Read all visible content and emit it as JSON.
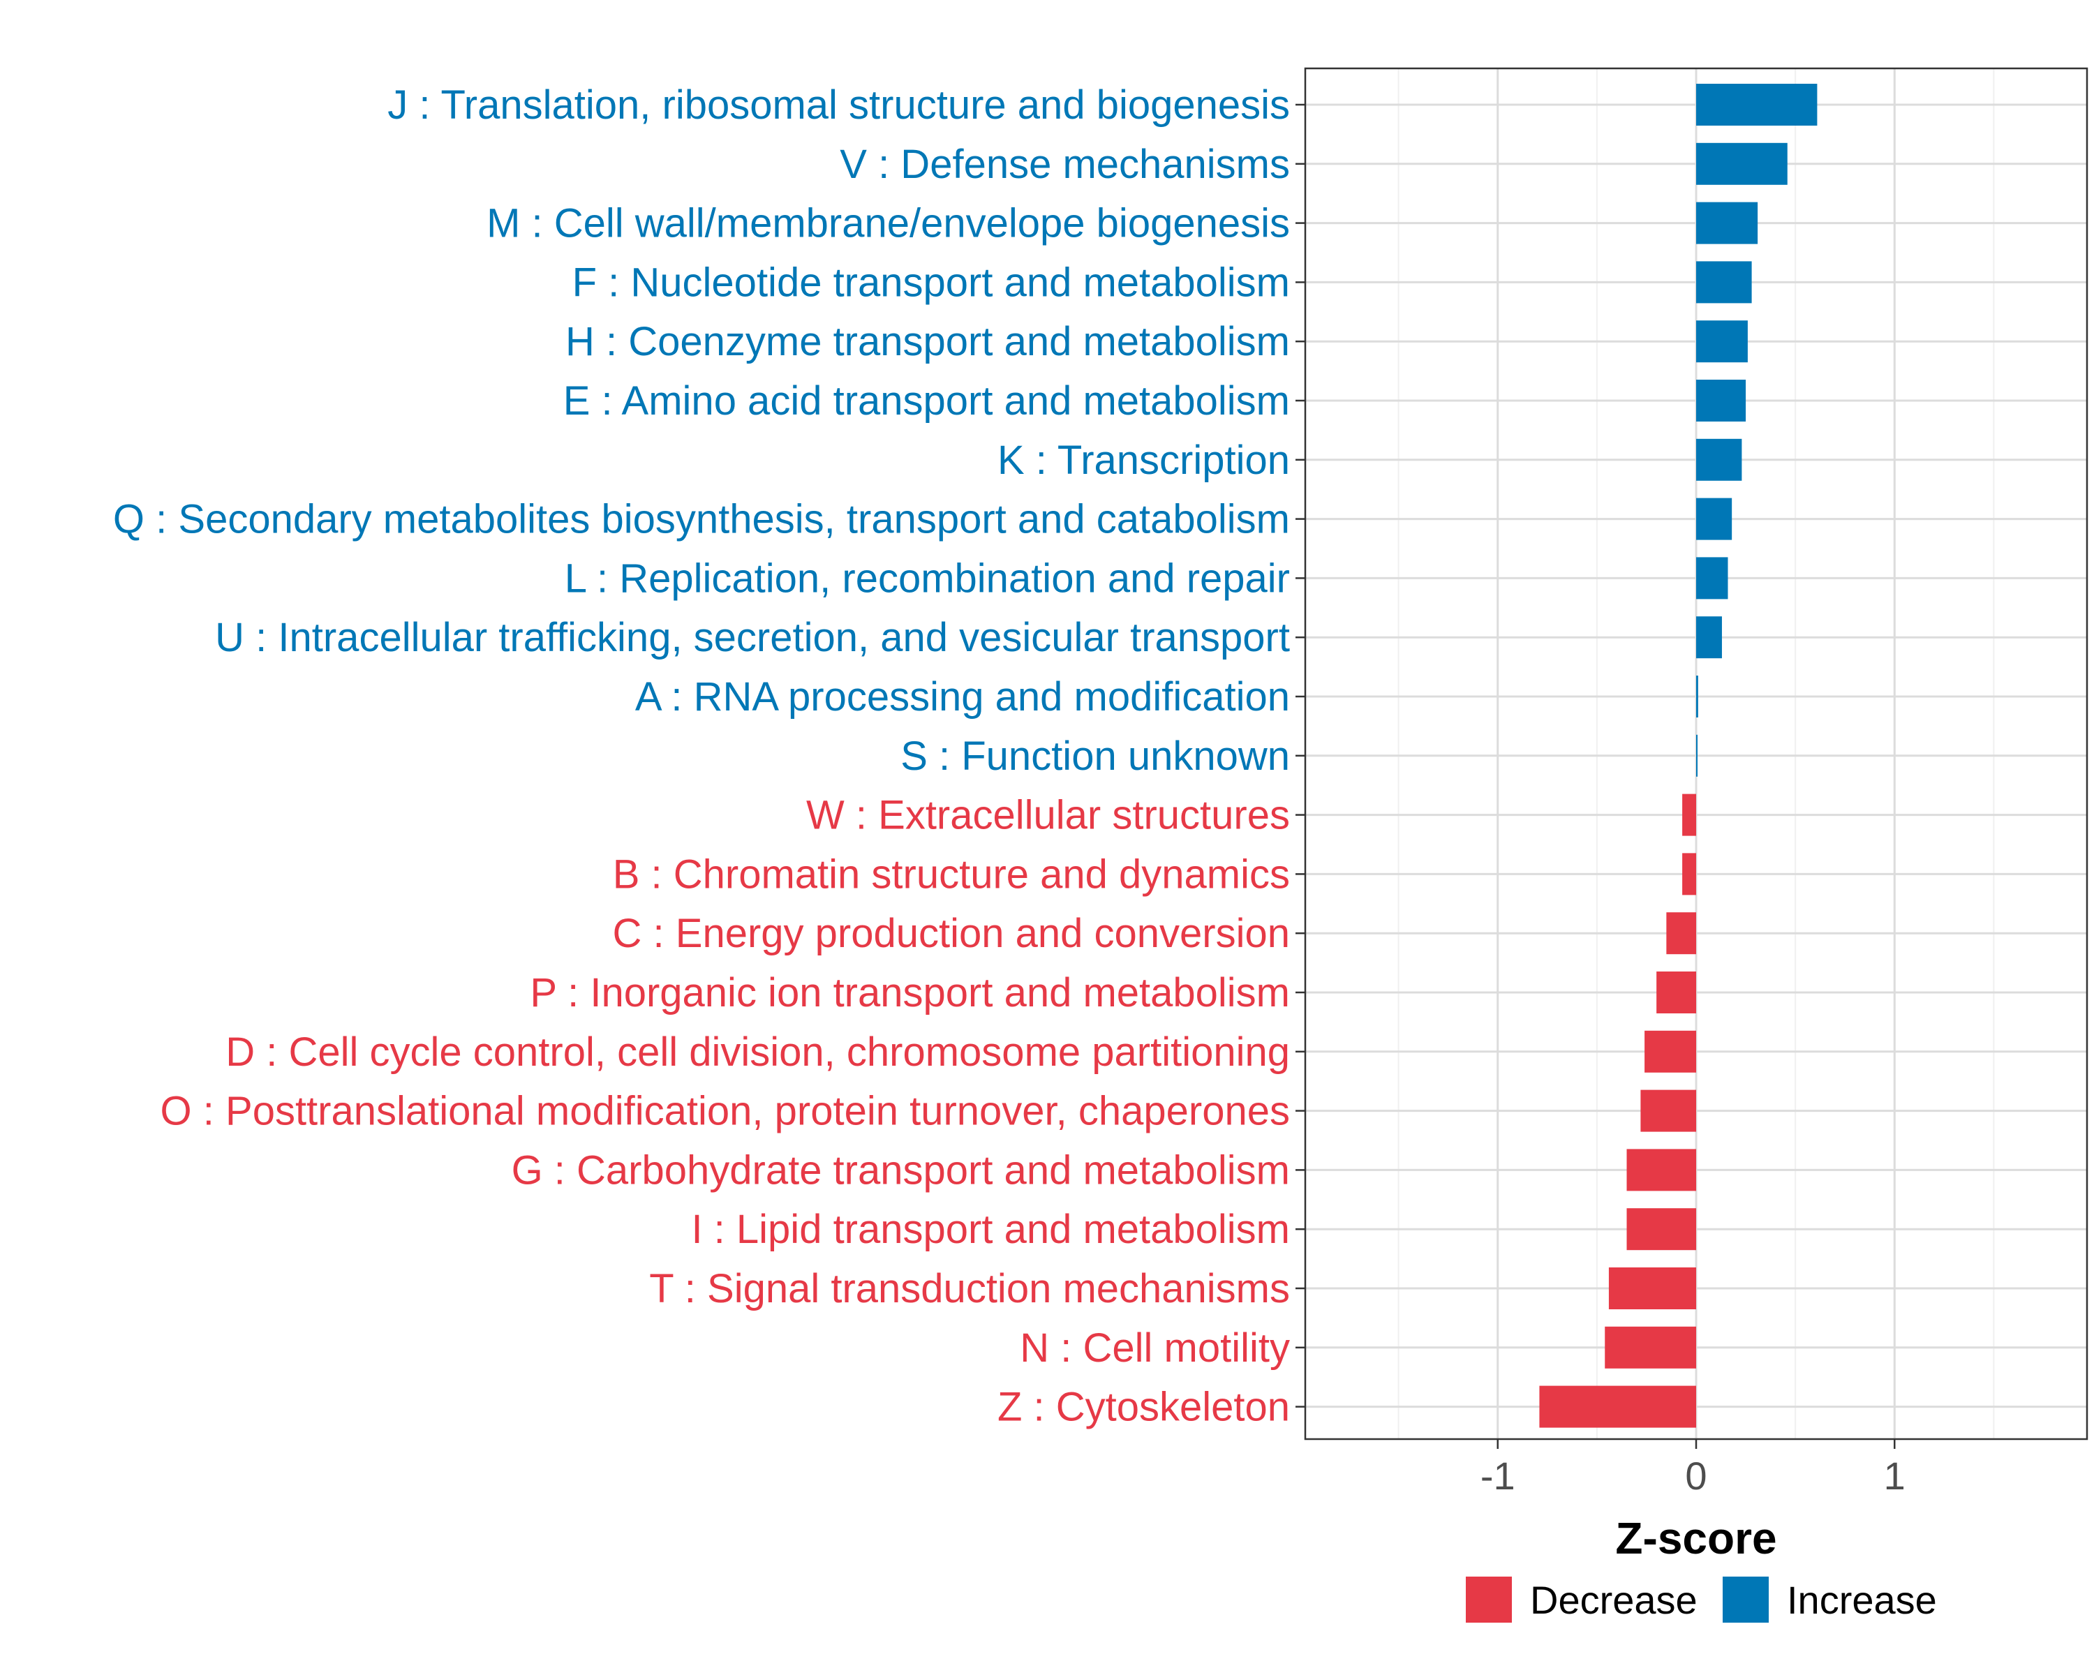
{
  "chart_data": {
    "type": "bar",
    "orientation": "horizontal",
    "title": "",
    "xlabel": "Z-score",
    "ylabel": "",
    "xlim": [
      -1.97,
      1.97
    ],
    "xticks": [
      -1,
      0,
      1
    ],
    "xtick_labels": [
      "-1",
      "0",
      "1"
    ],
    "grid": true,
    "legend": {
      "position": "bottom",
      "entries": [
        {
          "label": "Decrease",
          "color": "#E63946"
        },
        {
          "label": "Increase",
          "color": "#0077B6"
        }
      ]
    },
    "categories": [
      "J : Translation, ribosomal structure and biogenesis",
      "V : Defense mechanisms",
      "M : Cell wall/membrane/envelope biogenesis",
      "F : Nucleotide transport and metabolism",
      "H : Coenzyme transport and metabolism",
      "E : Amino acid transport and metabolism",
      "K : Transcription",
      "Q : Secondary metabolites biosynthesis, transport and catabolism",
      "L : Replication, recombination and repair",
      "U : Intracellular trafficking, secretion, and vesicular transport",
      "A : RNA processing and modification",
      "S : Function unknown",
      "W : Extracellular structures",
      "B : Chromatin structure and dynamics",
      "C : Energy production and conversion",
      "P : Inorganic ion transport and metabolism",
      "D : Cell cycle control, cell division, chromosome partitioning",
      "O : Posttranslational modification, protein turnover, chaperones",
      "G : Carbohydrate transport and metabolism",
      "I : Lipid transport and metabolism",
      "T : Signal transduction mechanisms",
      "N : Cell motility",
      "Z : Cytoskeleton"
    ],
    "values": [
      0.61,
      0.46,
      0.31,
      0.28,
      0.26,
      0.25,
      0.23,
      0.18,
      0.16,
      0.13,
      0.01,
      0.005,
      -0.07,
      -0.07,
      -0.15,
      -0.2,
      -0.26,
      -0.28,
      -0.35,
      -0.35,
      -0.44,
      -0.46,
      -0.79
    ],
    "series_colors": {
      "increase": "#0077B6",
      "decrease": "#E63946"
    }
  }
}
